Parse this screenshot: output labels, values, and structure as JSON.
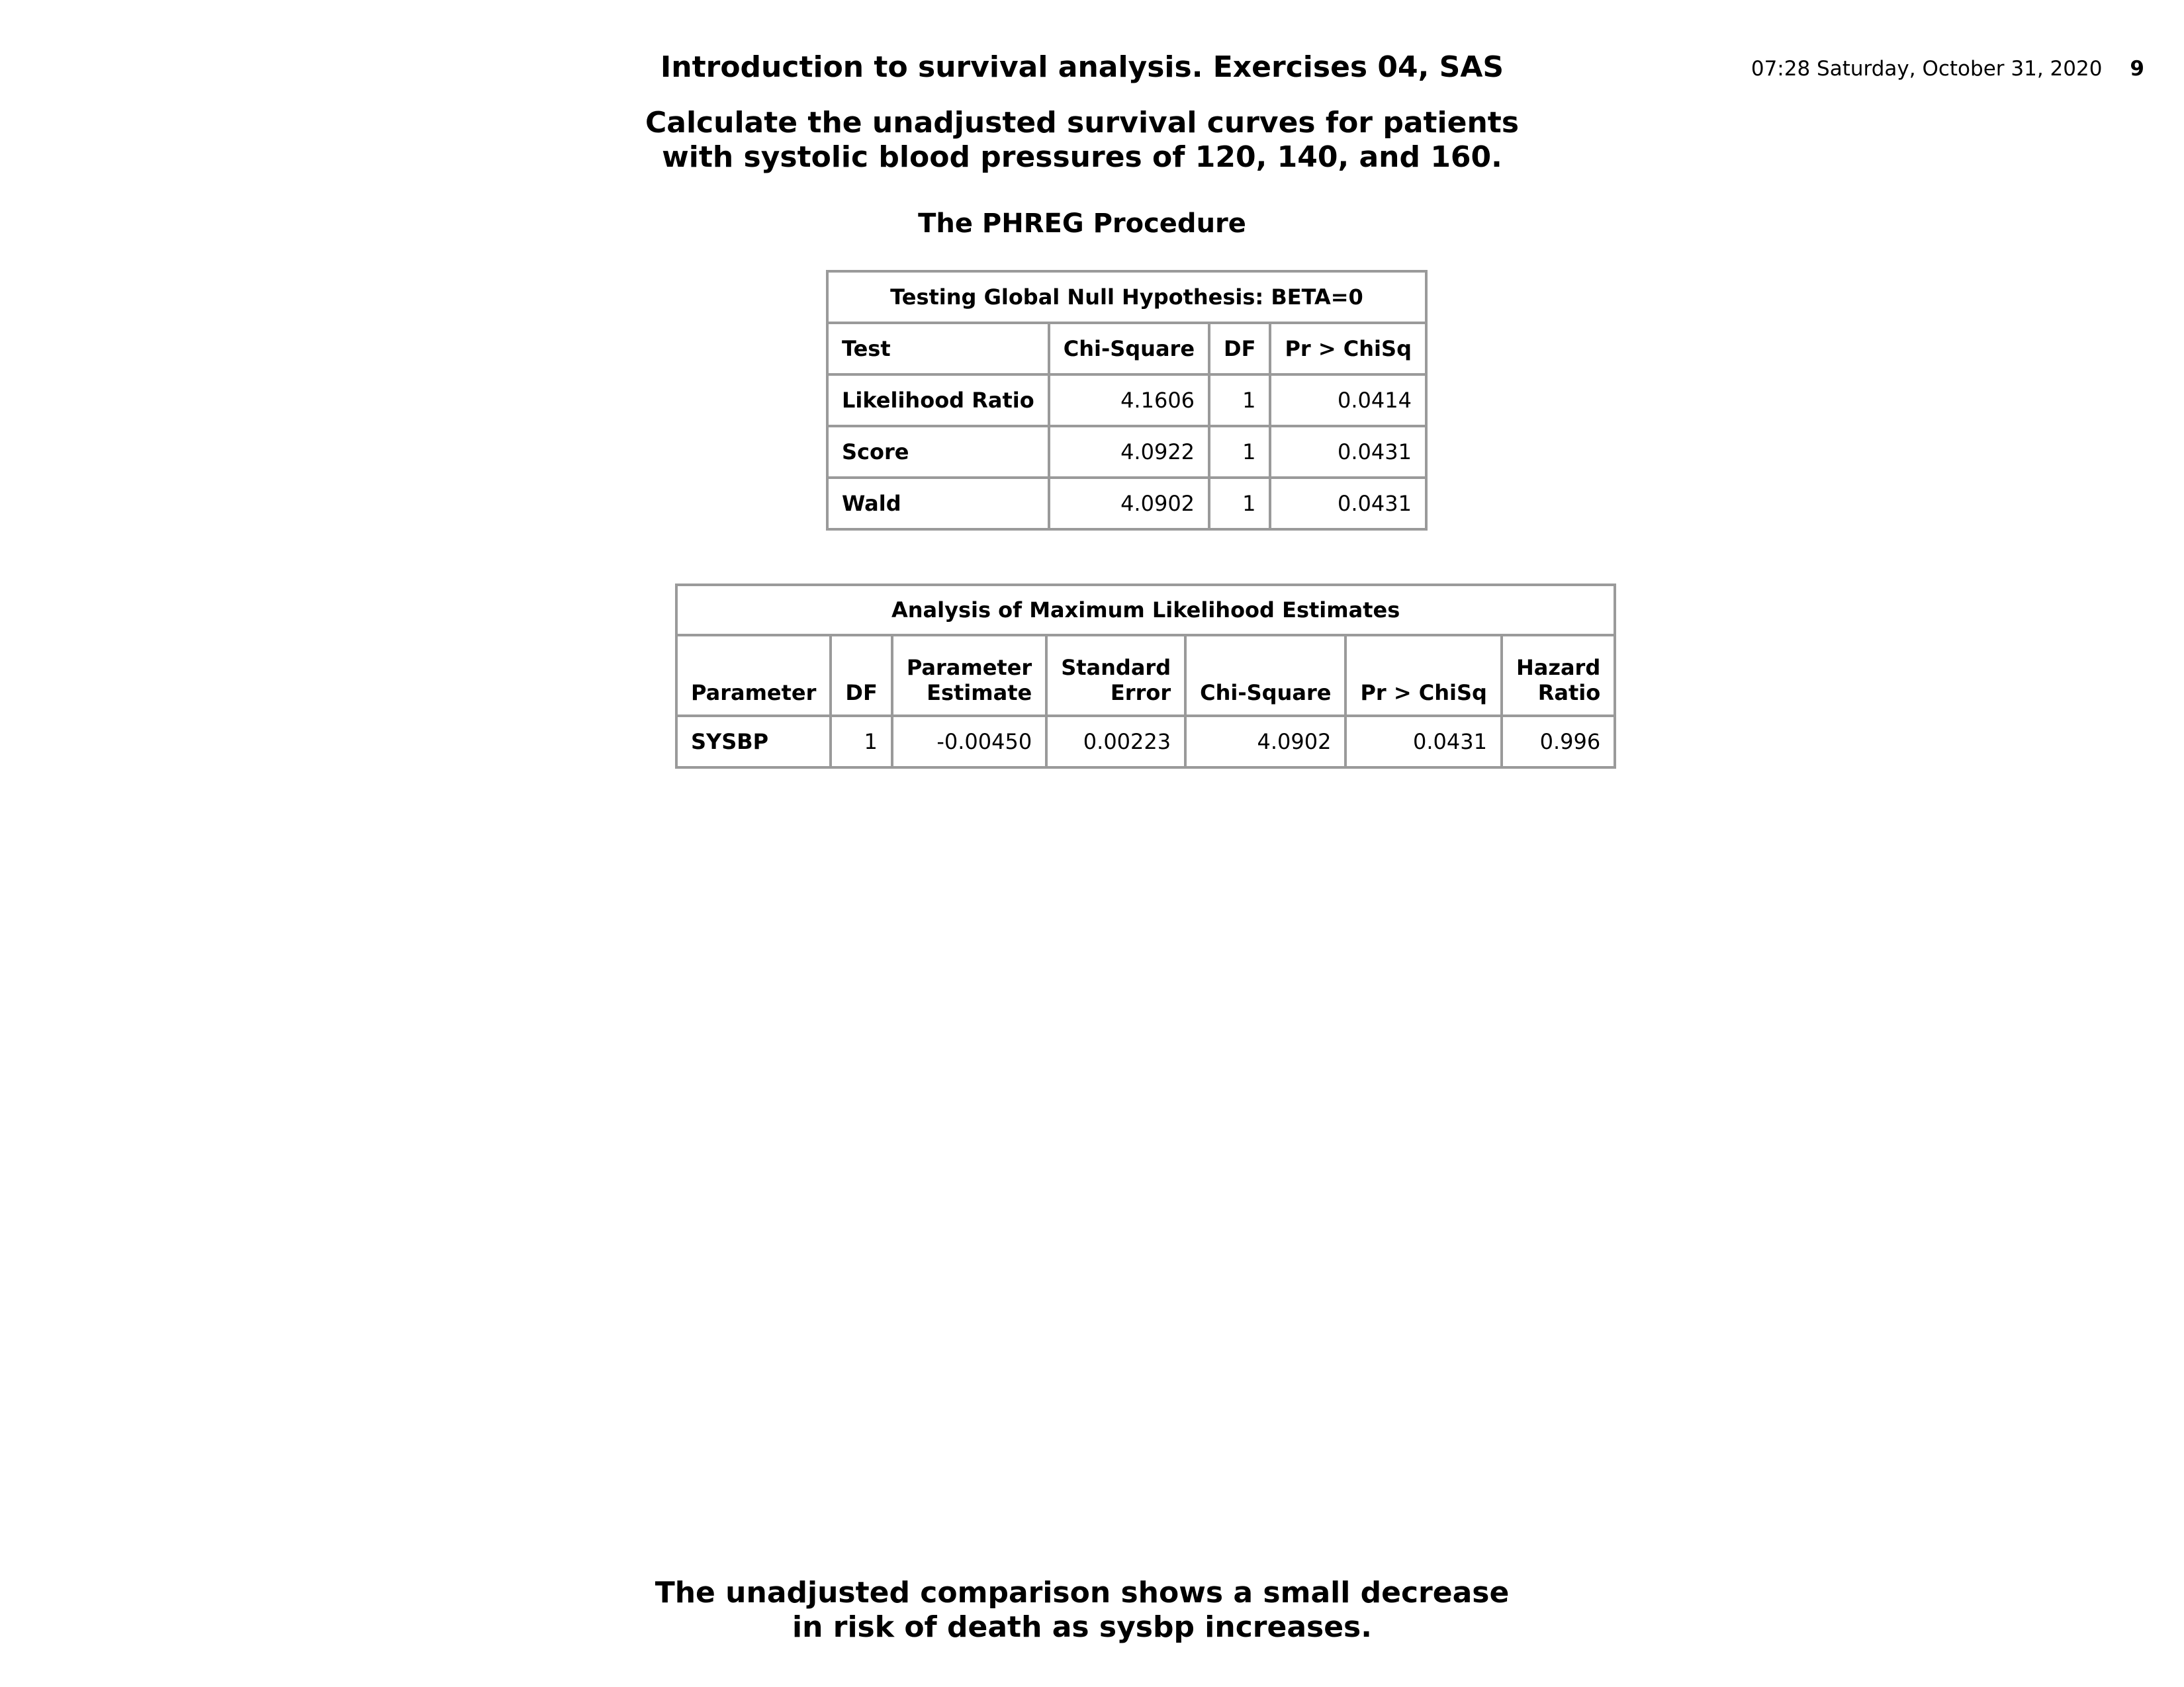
{
  "header": {
    "title": "Introduction to survival analysis. Exercises 04, SAS",
    "timestamp": "07:28 Saturday, October 31, 2020",
    "page_number": "9"
  },
  "subtitle": "Calculate the unadjusted survival curves for patients\nwith systolic blood pressures of 120, 140, and 160.",
  "procedure_title": "The PHREG Procedure",
  "global_null_table": {
    "caption": "Testing Global Null Hypothesis: BETA=0",
    "columns": [
      "Test",
      "Chi-Square",
      "DF",
      "Pr > ChiSq"
    ],
    "rows": [
      [
        "Likelihood Ratio",
        "4.1606",
        "1",
        "0.0414"
      ],
      [
        "Score",
        "4.0922",
        "1",
        "0.0431"
      ],
      [
        "Wald",
        "4.0902",
        "1",
        "0.0431"
      ]
    ]
  },
  "mle_table": {
    "caption": "Analysis of Maximum Likelihood Estimates",
    "columns": [
      {
        "line1": "",
        "line2": "Parameter"
      },
      {
        "line1": "",
        "line2": "DF"
      },
      {
        "line1": "Parameter",
        "line2": "Estimate"
      },
      {
        "line1": "Standard",
        "line2": "Error"
      },
      {
        "line1": "",
        "line2": "Chi-Square"
      },
      {
        "line1": "",
        "line2": "Pr > ChiSq"
      },
      {
        "line1": "Hazard",
        "line2": "Ratio"
      }
    ],
    "rows": [
      [
        "SYSBP",
        "1",
        "-0.00450",
        "0.00223",
        "4.0902",
        "0.0431",
        "0.996"
      ]
    ]
  },
  "conclusion": "The unadjusted comparison shows a small decrease\nin risk of death as sysbp increases."
}
